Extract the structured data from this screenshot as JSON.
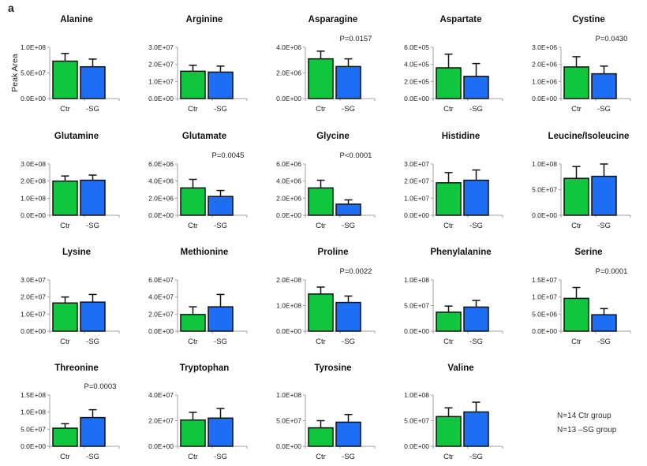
{
  "figure": {
    "panel_label": "a",
    "ylabel": "Peak Area",
    "notes": [
      "N=14 Ctr group",
      "N=13 –SG group"
    ],
    "colors": {
      "Ctr": "#11c63f",
      "-SG": "#1d6ef5",
      "bar_edge": "#111111",
      "axis": "#a0a0a0"
    }
  },
  "chart_data": [
    {
      "type": "bar",
      "title": "Alanine",
      "pvalue": "",
      "categories": [
        "Ctr",
        "-SG"
      ],
      "values": [
        73000000.0,
        62000000.0
      ],
      "errors": [
        15000000.0,
        15000000.0
      ],
      "ylim": [
        0,
        100000000.0
      ],
      "yticks": [
        "0.0E+00",
        "5.0E+07",
        "1.0E+08"
      ],
      "ylabel": "Peak Area"
    },
    {
      "type": "bar",
      "title": "Arginine",
      "pvalue": "",
      "categories": [
        "Ctr",
        "-SG"
      ],
      "values": [
        16000000.0,
        15500000.0
      ],
      "errors": [
        3500000.0,
        3500000.0
      ],
      "ylim": [
        0,
        30000000.0
      ],
      "yticks": [
        "0.0E+00",
        "1.0E+07",
        "2.0E+07",
        "3.0E+07"
      ],
      "ylabel": ""
    },
    {
      "type": "bar",
      "title": "Asparagine",
      "pvalue": "P=0.0157",
      "categories": [
        "Ctr",
        "-SG"
      ],
      "values": [
        3100000.0,
        2500000.0
      ],
      "errors": [
        600000.0,
        600000.0
      ],
      "ylim": [
        0,
        4000000.0
      ],
      "yticks": [
        "0.0E+00",
        "2.0E+06",
        "4.0E+06"
      ],
      "ylabel": ""
    },
    {
      "type": "bar",
      "title": "Aspartate",
      "pvalue": "",
      "categories": [
        "Ctr",
        "-SG"
      ],
      "values": [
        360000.0,
        260000.0
      ],
      "errors": [
        160000.0,
        150000.0
      ],
      "ylim": [
        0,
        600000.0
      ],
      "yticks": [
        "0.0E+00",
        "2.0E+05",
        "4.0E+05",
        "6.0E+05"
      ],
      "ylabel": ""
    },
    {
      "type": "bar",
      "title": "Cystine",
      "pvalue": "P=0.0430",
      "categories": [
        "Ctr",
        "-SG"
      ],
      "values": [
        1850000.0,
        1450000.0
      ],
      "errors": [
        600000.0,
        450000.0
      ],
      "ylim": [
        0,
        3000000.0
      ],
      "yticks": [
        "0.0E+00",
        "1.0E+06",
        "2.0E+06",
        "3.0E+06"
      ],
      "ylabel": ""
    },
    {
      "type": "bar",
      "title": "Glutamine",
      "pvalue": "",
      "categories": [
        "Ctr",
        "-SG"
      ],
      "values": [
        200000000.0,
        205000000.0
      ],
      "errors": [
        30000000.0,
        30000000.0
      ],
      "ylim": [
        0,
        300000000.0
      ],
      "yticks": [
        "0.0E+00",
        "1.0E+08",
        "2.0E+08",
        "3.0E+08"
      ],
      "ylabel": ""
    },
    {
      "type": "bar",
      "title": "Glutamate",
      "pvalue": "P=0.0045",
      "categories": [
        "Ctr",
        "-SG"
      ],
      "values": [
        3200000.0,
        2200000.0
      ],
      "errors": [
        1000000.0,
        700000.0
      ],
      "ylim": [
        0,
        6000000.0
      ],
      "yticks": [
        "0.0E+00",
        "2.0E+06",
        "4.0E+06",
        "6.0E+06"
      ],
      "ylabel": ""
    },
    {
      "type": "bar",
      "title": "Glycine",
      "pvalue": "P<0.0001",
      "categories": [
        "Ctr",
        "-SG"
      ],
      "values": [
        3200000.0,
        1300000.0
      ],
      "errors": [
        900000.0,
        500000.0
      ],
      "ylim": [
        0,
        6000000.0
      ],
      "yticks": [
        "0.0E+00",
        "2.0E+06",
        "4.0E+06",
        "6.0E+06"
      ],
      "ylabel": ""
    },
    {
      "type": "bar",
      "title": "Histidine",
      "pvalue": "",
      "categories": [
        "Ctr",
        "-SG"
      ],
      "values": [
        19000000.0,
        20500000.0
      ],
      "errors": [
        6000000.0,
        6000000.0
      ],
      "ylim": [
        0,
        30000000.0
      ],
      "yticks": [
        "0.0E+00",
        "1.0E+07",
        "2.0E+07",
        "3.0E+07"
      ],
      "ylabel": ""
    },
    {
      "type": "bar",
      "title": "Leucine/Isoleucine",
      "pvalue": "",
      "categories": [
        "Ctr",
        "-SG"
      ],
      "values": [
        72000000.0,
        76000000.0
      ],
      "errors": [
        23000000.0,
        24000000.0
      ],
      "ylim": [
        0,
        100000000.0
      ],
      "yticks": [
        "0.0E+00",
        "5.0E+07",
        "1.0E+08"
      ],
      "ylabel": ""
    },
    {
      "type": "bar",
      "title": "Lysine",
      "pvalue": "",
      "categories": [
        "Ctr",
        "-SG"
      ],
      "values": [
        16500000.0,
        17000000.0
      ],
      "errors": [
        3500000.0,
        4500000.0
      ],
      "ylim": [
        0,
        30000000.0
      ],
      "yticks": [
        "0.0E+00",
        "1.0E+07",
        "2.0E+07",
        "3.0E+07"
      ],
      "ylabel": ""
    },
    {
      "type": "bar",
      "title": "Methionine",
      "pvalue": "",
      "categories": [
        "Ctr",
        "-SG"
      ],
      "values": [
        19500000.0,
        28500000.0
      ],
      "errors": [
        9000000.0,
        14500000.0
      ],
      "ylim": [
        0,
        60000000.0
      ],
      "yticks": [
        "0.0E+00",
        "2.0E+07",
        "4.0E+07",
        "6.0E+07"
      ],
      "ylabel": ""
    },
    {
      "type": "bar",
      "title": "Proline",
      "pvalue": "P=0.0022",
      "categories": [
        "Ctr",
        "-SG"
      ],
      "values": [
        145000000.0,
        112000000.0
      ],
      "errors": [
        27000000.0,
        25000000.0
      ],
      "ylim": [
        0,
        200000000.0
      ],
      "yticks": [
        "0.0E+00",
        "1.0E+08",
        "2.0E+08"
      ],
      "ylabel": ""
    },
    {
      "type": "bar",
      "title": "Phenylalanine",
      "pvalue": "",
      "categories": [
        "Ctr",
        "-SG"
      ],
      "values": [
        37000000.0,
        47000000.0
      ],
      "errors": [
        12000000.0,
        13000000.0
      ],
      "ylim": [
        0,
        100000000.0
      ],
      "yticks": [
        "0.0E+00",
        "5.0E+07",
        "1.0E+08"
      ],
      "ylabel": ""
    },
    {
      "type": "bar",
      "title": "Serine",
      "pvalue": "P=0.0001",
      "categories": [
        "Ctr",
        "-SG"
      ],
      "values": [
        9600000.0,
        4800000.0
      ],
      "errors": [
        3200000.0,
        1800000.0
      ],
      "ylim": [
        0,
        15000000.0
      ],
      "yticks": [
        "0.0E+00",
        "5.0E+06",
        "1.0E+07",
        "1.5E+07"
      ],
      "ylabel": ""
    },
    {
      "type": "bar",
      "title": "Threonine",
      "pvalue": "P=0.0003",
      "categories": [
        "Ctr",
        "-SG"
      ],
      "values": [
        53000000.0,
        84000000.0
      ],
      "errors": [
        13000000.0,
        23000000.0
      ],
      "ylim": [
        0,
        150000000.0
      ],
      "yticks": [
        "0.0E+00",
        "5.0E+07",
        "1.0E+08",
        "1.5E+08"
      ],
      "ylabel": ""
    },
    {
      "type": "bar",
      "title": "Tryptophan",
      "pvalue": "",
      "categories": [
        "Ctr",
        "-SG"
      ],
      "values": [
        20500000.0,
        22000000.0
      ],
      "errors": [
        6000000.0,
        7500000.0
      ],
      "ylim": [
        0,
        40000000.0
      ],
      "yticks": [
        "0.0E+00",
        "2.0E+07",
        "4.0E+07"
      ],
      "ylabel": ""
    },
    {
      "type": "bar",
      "title": "Tyrosine",
      "pvalue": "",
      "categories": [
        "Ctr",
        "-SG"
      ],
      "values": [
        36000000.0,
        47000000.0
      ],
      "errors": [
        14000000.0,
        15000000.0
      ],
      "ylim": [
        0,
        100000000.0
      ],
      "yticks": [
        "0.0E+00",
        "5.0E+07",
        "1.0E+08"
      ],
      "ylabel": ""
    },
    {
      "type": "bar",
      "title": "Valine",
      "pvalue": "",
      "categories": [
        "Ctr",
        "-SG"
      ],
      "values": [
        58000000.0,
        67000000.0
      ],
      "errors": [
        17000000.0,
        19000000.0
      ],
      "ylim": [
        0,
        100000000.0
      ],
      "yticks": [
        "0.0E+00",
        "5.0E+07",
        "1.0E+08"
      ],
      "ylabel": ""
    }
  ]
}
